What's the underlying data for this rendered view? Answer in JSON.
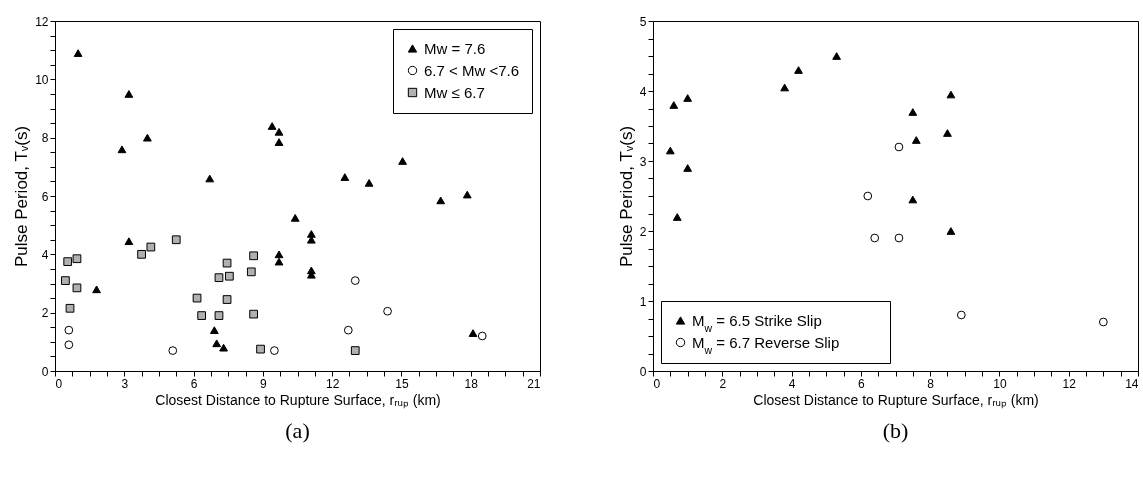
{
  "chart_data": [
    {
      "type": "scatter",
      "xlabel": "Closest Distance to Rupture Surface, rᵣᵤₚ (km)",
      "ylabel": "Pulse Period, Tᵥ(s)",
      "annotations": [
        "(a)"
      ],
      "legend": "top right",
      "xlim": [
        0,
        21
      ],
      "ylim": [
        0,
        12
      ],
      "xticks": [
        0,
        {
          "value": 0.75,
          "label": null
        },
        {
          "value": 1.5,
          "label": null
        },
        {
          "value": 2.25,
          "label": null
        },
        3,
        {
          "value": 3.75,
          "label": null
        },
        {
          "value": 4.5,
          "label": null
        },
        {
          "value": 5.25,
          "label": null
        },
        6,
        {
          "value": 6.75,
          "label": null
        },
        {
          "value": 7.5,
          "label": null
        },
        {
          "value": 8.25,
          "label": null
        },
        9,
        {
          "value": 9.75,
          "label": null
        },
        {
          "value": 10.5,
          "label": null
        },
        {
          "value": 11.25,
          "label": null
        },
        12,
        {
          "value": 12.75,
          "label": null
        },
        {
          "value": 13.5,
          "label": null
        },
        {
          "value": 14.25,
          "label": null
        },
        15,
        {
          "value": 15.75,
          "label": null
        },
        {
          "value": 16.5,
          "label": null
        },
        {
          "value": 17.25,
          "label": null
        },
        18,
        {
          "value": 18.75,
          "label": null
        },
        {
          "value": 19.5,
          "label": null
        },
        {
          "value": 20.25,
          "label": null
        },
        21
      ],
      "yticks": [
        0,
        {
          "value": 0.5,
          "label": null
        },
        {
          "value": 1,
          "label": null
        },
        {
          "value": 1.5,
          "label": null
        },
        2,
        {
          "value": 2.5,
          "label": null
        },
        {
          "value": 3,
          "label": null
        },
        {
          "value": 3.5,
          "label": null
        },
        4,
        {
          "value": 4.5,
          "label": null
        },
        {
          "value": 5,
          "label": null
        },
        {
          "value": 5.5,
          "label": null
        },
        6,
        {
          "value": 6.5,
          "label": null
        },
        {
          "value": 7,
          "label": null
        },
        {
          "value": 7.5,
          "label": null
        },
        8,
        {
          "value": 8.5,
          "label": null
        },
        {
          "value": 9,
          "label": null
        },
        {
          "value": 9.5,
          "label": null
        },
        10,
        {
          "value": 10.5,
          "label": null
        },
        {
          "value": 11,
          "label": null
        },
        {
          "value": 11.5,
          "label": null
        },
        12
      ],
      "series": [
        {
          "name": "Mw = 7.6",
          "color": "#000000",
          "marker": "triangle",
          "x": [
            1.0,
            3.2,
            2.9,
            4.0,
            6.7,
            3.2,
            1.8,
            9.4,
            9.7,
            9.7,
            9.7,
            9.7,
            6.9,
            7.0,
            7.3,
            10.4,
            11.1,
            11.1,
            11.1,
            11.1,
            12.55,
            13.6,
            15.05,
            16.7,
            17.85,
            18.1
          ],
          "values": [
            10.9,
            9.5,
            7.6,
            8.0,
            6.6,
            4.45,
            2.8,
            8.4,
            8.2,
            7.85,
            4.0,
            3.75,
            1.4,
            0.95,
            0.8,
            5.25,
            4.7,
            4.5,
            3.45,
            3.3,
            6.65,
            6.45,
            7.2,
            5.85,
            6.05,
            1.3
          ]
        },
        {
          "name": "6.7 < Mw <7.6",
          "color": "#ffffff",
          "marker": "circle",
          "x": [
            0.6,
            0.6,
            5.1,
            9.5,
            12.7,
            13.0,
            14.4,
            18.5
          ],
          "values": [
            1.4,
            0.9,
            0.7,
            0.7,
            1.4,
            3.1,
            2.05,
            1.2
          ]
        },
        {
          "name": "Mw ≤ 6.7",
          "color": "#b0b0b0",
          "marker": "square",
          "x": [
            0.55,
            0.95,
            0.45,
            0.95,
            0.65,
            3.75,
            4.15,
            5.25,
            6.15,
            6.35,
            7.1,
            7.1,
            7.45,
            7.55,
            7.45,
            8.5,
            8.6,
            8.6,
            8.9,
            13.0
          ],
          "values": [
            3.75,
            3.85,
            3.1,
            2.85,
            2.15,
            4.0,
            4.25,
            4.5,
            2.5,
            1.9,
            3.2,
            1.9,
            3.7,
            3.25,
            2.45,
            3.4,
            3.95,
            1.95,
            0.75,
            0.7
          ]
        }
      ]
    },
    {
      "type": "scatter",
      "xlabel": "Closest Distance to Rupture Surface, rᵣᵤₚ (km)",
      "ylabel": "Pulse Period, Tᵥ(s)",
      "annotations": [
        "(b)"
      ],
      "legend": "bottom left",
      "xlim": [
        0,
        14
      ],
      "ylim": [
        0,
        5
      ],
      "xticks": [
        0,
        {
          "value": 0.5,
          "label": null
        },
        {
          "value": 1,
          "label": null
        },
        {
          "value": 1.5,
          "label": null
        },
        2,
        {
          "value": 2.5,
          "label": null
        },
        {
          "value": 3,
          "label": null
        },
        {
          "value": 3.5,
          "label": null
        },
        4,
        {
          "value": 4.5,
          "label": null
        },
        {
          "value": 5,
          "label": null
        },
        {
          "value": 5.5,
          "label": null
        },
        6,
        {
          "value": 6.5,
          "label": null
        },
        {
          "value": 7,
          "label": null
        },
        {
          "value": 7.5,
          "label": null
        },
        8,
        {
          "value": 8.5,
          "label": null
        },
        {
          "value": 9,
          "label": null
        },
        {
          "value": 9.5,
          "label": null
        },
        10,
        {
          "value": 10.5,
          "label": null
        },
        {
          "value": 11,
          "label": null
        },
        {
          "value": 11.5,
          "label": null
        },
        12,
        {
          "value": 12.5,
          "label": null
        },
        {
          "value": 13,
          "label": null
        },
        {
          "value": 13.5,
          "label": null
        },
        14
      ],
      "yticks": [
        0,
        {
          "value": 0.25,
          "label": null
        },
        {
          "value": 0.5,
          "label": null
        },
        {
          "value": 0.75,
          "label": null
        },
        1,
        {
          "value": 1.25,
          "label": null
        },
        {
          "value": 1.5,
          "label": null
        },
        {
          "value": 1.75,
          "label": null
        },
        2,
        {
          "value": 2.25,
          "label": null
        },
        {
          "value": 2.5,
          "label": null
        },
        {
          "value": 2.75,
          "label": null
        },
        3,
        {
          "value": 3.25,
          "label": null
        },
        {
          "value": 3.5,
          "label": null
        },
        {
          "value": 3.75,
          "label": null
        },
        4,
        {
          "value": 4.25,
          "label": null
        },
        {
          "value": 4.5,
          "label": null
        },
        {
          "value": 4.75,
          "label": null
        },
        5
      ],
      "series": [
        {
          "name": "M$_{w}$ = 6.5 Strike Slip",
          "color": "#000000",
          "marker": "triangle",
          "x": [
            0.5,
            0.6,
            1.0,
            1.0,
            0.7,
            3.8,
            4.2,
            5.3,
            8.6,
            7.5,
            8.5,
            7.6,
            7.5,
            8.6
          ],
          "values": [
            3.15,
            3.8,
            3.9,
            2.9,
            2.2,
            4.05,
            4.3,
            4.5,
            3.95,
            3.7,
            3.4,
            3.3,
            2.45,
            2.0
          ]
        },
        {
          "name": "M$_{w}$ = 6.7 Reverse Slip",
          "color": "#ffffff",
          "marker": "circle",
          "x": [
            6.2,
            6.4,
            7.1,
            7.1,
            8.9,
            13.0
          ],
          "values": [
            2.5,
            1.9,
            3.2,
            1.9,
            0.8,
            0.7
          ]
        }
      ]
    }
  ]
}
